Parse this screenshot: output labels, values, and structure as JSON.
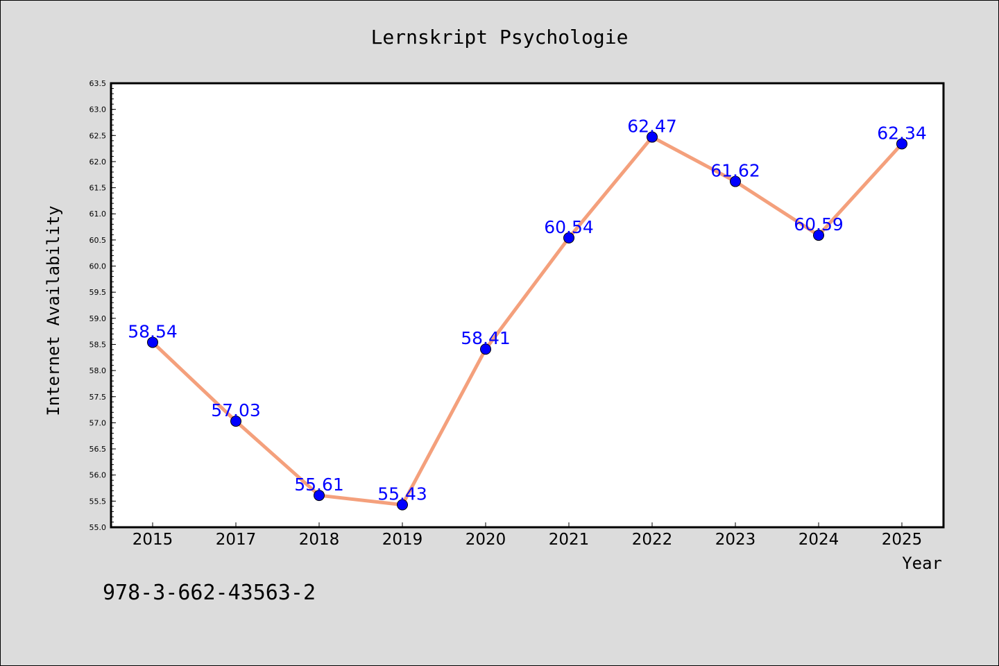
{
  "colors": {
    "background": "#dcdcdc",
    "plot_background": "#ffffff",
    "line": "#f4a07c",
    "marker": "#0000ff",
    "data_label": "#0000ff"
  },
  "footer_text": "978-3-662-43563-2",
  "chart_data": {
    "type": "line",
    "title": "Lernskript Psychologie",
    "xlabel": "Year",
    "ylabel": "Internet Availability",
    "categories": [
      "2015",
      "2017",
      "2018",
      "2019",
      "2020",
      "2021",
      "2022",
      "2023",
      "2024",
      "2025"
    ],
    "series": [
      {
        "values": [
          58.54,
          57.03,
          55.61,
          55.43,
          58.41,
          60.54,
          62.47,
          61.62,
          60.59,
          62.34
        ],
        "labels": [
          "58.54",
          "57.03",
          "55.61",
          "55.43",
          "58.41",
          "60.54",
          "62.47",
          "61.62",
          "60.59",
          "62.34"
        ]
      }
    ],
    "ylim": [
      55.0,
      63.5
    ],
    "yticks": [
      "55.0",
      "55.5",
      "56.0",
      "56.5",
      "57.0",
      "57.5",
      "58.0",
      "58.5",
      "59.0",
      "59.5",
      "60.0",
      "60.5",
      "61.0",
      "61.5",
      "62.0",
      "62.5",
      "63.0",
      "63.5"
    ],
    "grid": false,
    "legend": "none",
    "marker": "circle"
  }
}
